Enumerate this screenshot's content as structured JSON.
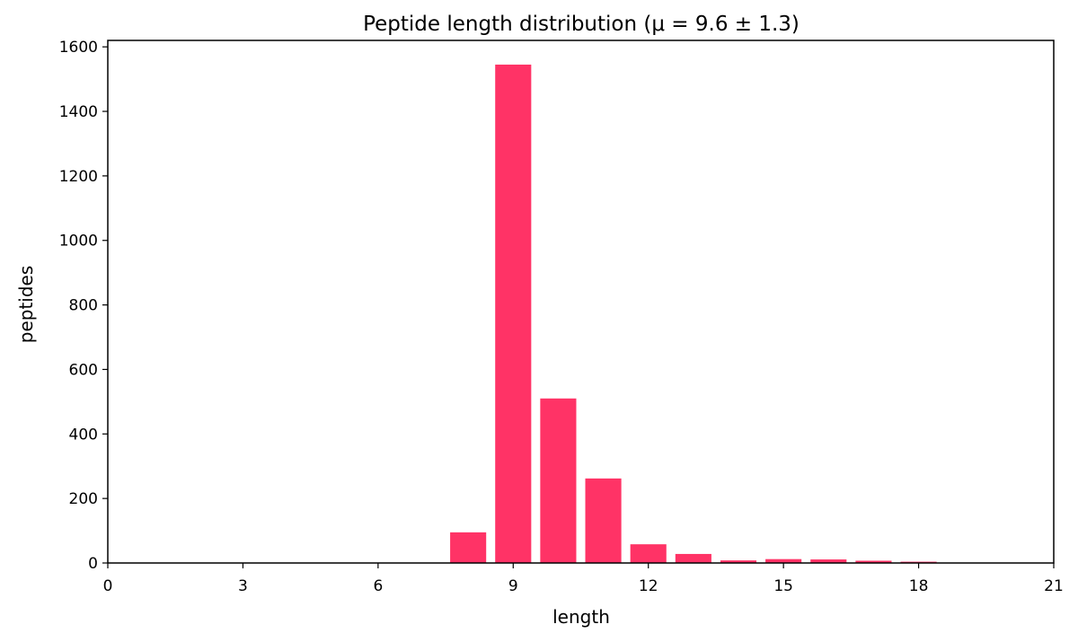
{
  "chart_data": {
    "type": "bar",
    "title": "Peptide length distribution (μ = 9.6 ± 1.3)",
    "xlabel": "length",
    "ylabel": "peptides",
    "xlim": [
      0,
      21
    ],
    "ylim": [
      0,
      1620
    ],
    "x_ticks": [
      0,
      3,
      6,
      9,
      12,
      15,
      18,
      21
    ],
    "y_ticks": [
      0,
      200,
      400,
      600,
      800,
      1000,
      1200,
      1400,
      1600
    ],
    "bar_color": "#ff3366",
    "grid": false,
    "x": [
      8,
      9,
      10,
      11,
      12,
      13,
      14,
      15,
      16,
      17,
      18
    ],
    "values": [
      95,
      1545,
      510,
      262,
      58,
      28,
      8,
      12,
      11,
      7,
      4
    ]
  }
}
